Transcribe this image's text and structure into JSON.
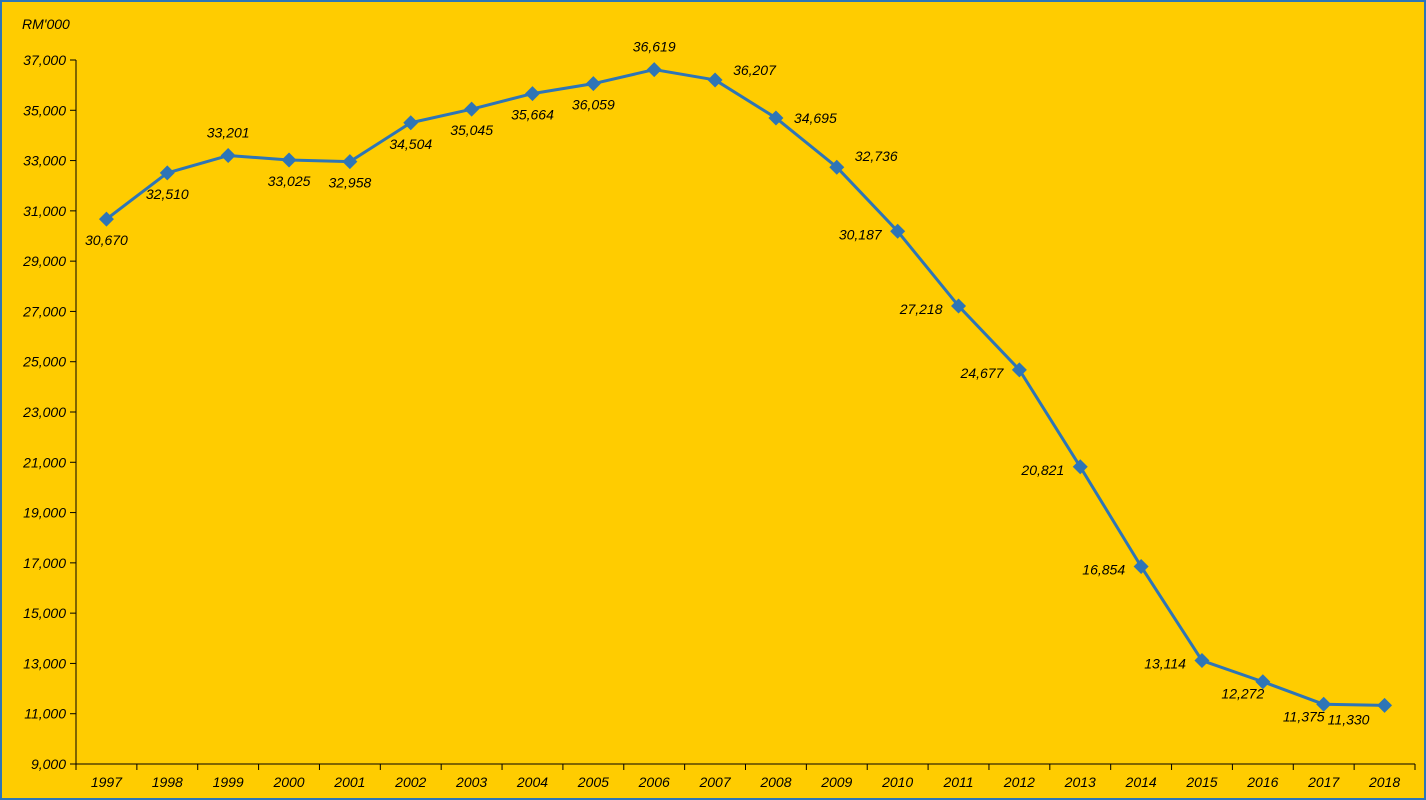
{
  "chart_data": {
    "type": "line",
    "unit_label": "RM'000",
    "categories": [
      "1997",
      "1998",
      "1999",
      "2000",
      "2001",
      "2002",
      "2003",
      "2004",
      "2005",
      "2006",
      "2007",
      "2008",
      "2009",
      "2010",
      "2011",
      "2012",
      "2013",
      "2014",
      "2015",
      "2016",
      "2017",
      "2018"
    ],
    "series": [
      {
        "values": [
          30670,
          32510,
          33201,
          33025,
          32958,
          34504,
          35045,
          35664,
          36059,
          36619,
          36207,
          34695,
          32736,
          30187,
          27218,
          24677,
          20821,
          16854,
          13114,
          12272,
          11375,
          11330
        ],
        "labels": [
          "30,670",
          "32,510",
          "33,201",
          "33,025",
          "32,958",
          "34,504",
          "35,045",
          "35,664",
          "36,059",
          "36,619",
          "36,207",
          "34,695",
          "32,736",
          "30,187",
          "27,218",
          "24,677",
          "20,821",
          "16,854",
          "13,114",
          "12,272",
          "11,375",
          "11,330"
        ],
        "color": "#2e75b6"
      }
    ],
    "y_ticks": [
      "9,000",
      "11,000",
      "13,000",
      "15,000",
      "17,000",
      "19,000",
      "21,000",
      "23,000",
      "25,000",
      "27,000",
      "29,000",
      "31,000",
      "33,000",
      "35,000",
      "37,000"
    ],
    "ylim": [
      9000,
      37000
    ],
    "grid": false,
    "legend": "none"
  },
  "colors": {
    "background": "#ffcc00",
    "line": "#2e75b6",
    "axis": "#000000"
  }
}
